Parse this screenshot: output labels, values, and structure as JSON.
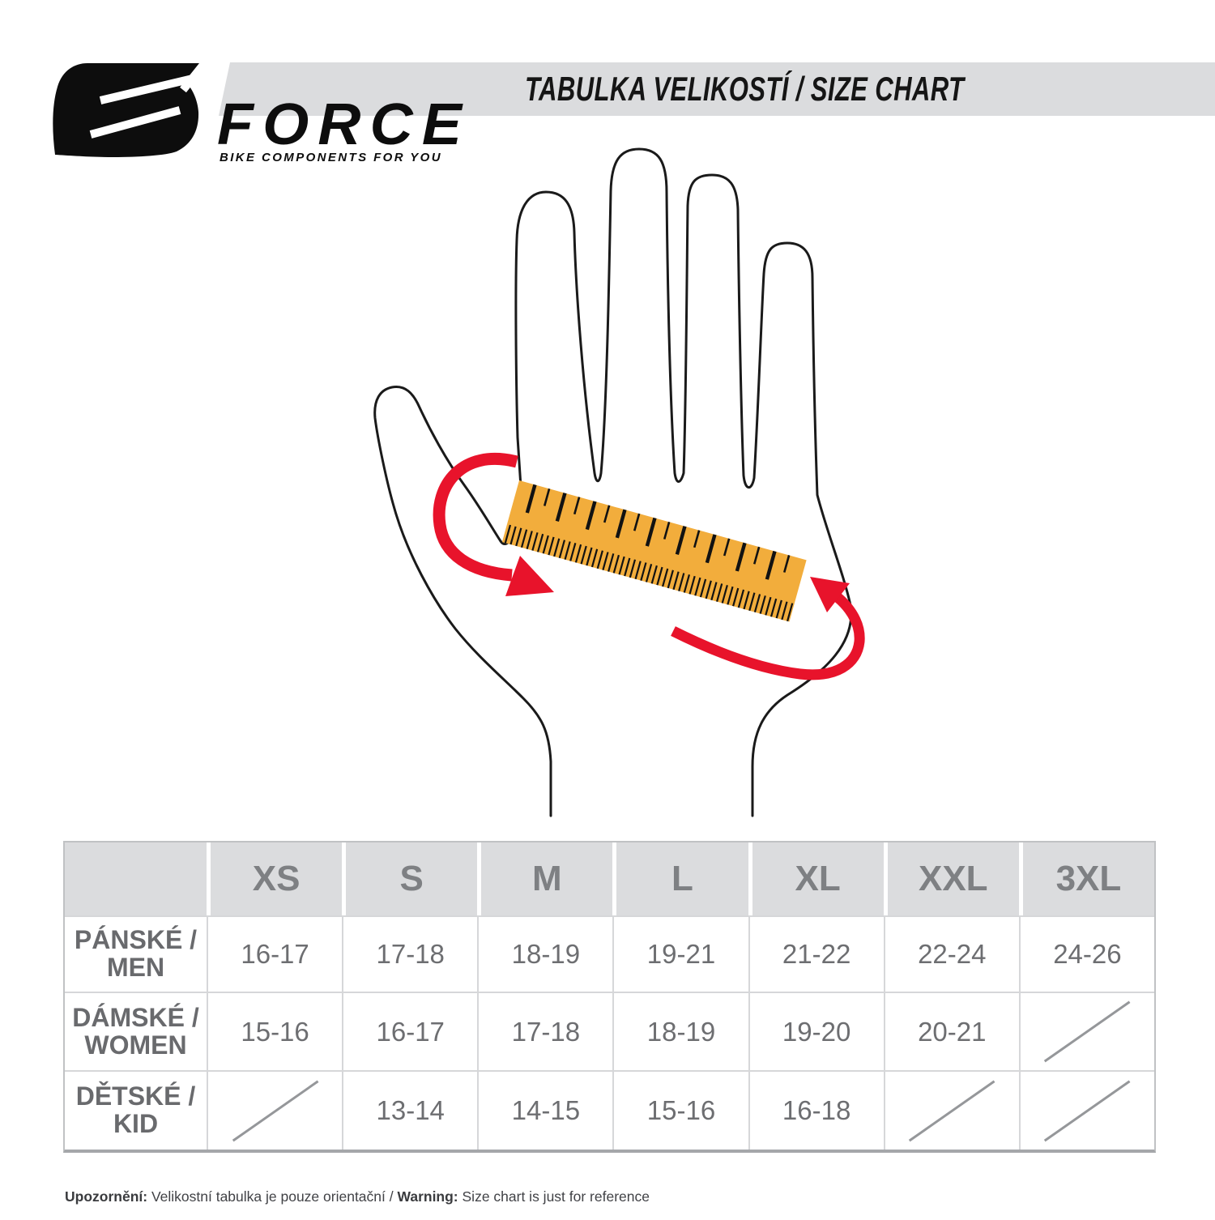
{
  "logo": {
    "brand": "FORCE",
    "tagline": "BIKE COMPONENTS FOR YOU"
  },
  "header": {
    "title": "TABULKA VELIKOSTÍ / SIZE CHART"
  },
  "illustration": {
    "tape_color": "#F2AD3C",
    "tick_color": "#121212",
    "arrow_color": "#E8132B",
    "outline_color": "#1A1A1A"
  },
  "size_table": {
    "columns": [
      "XS",
      "S",
      "M",
      "L",
      "XL",
      "XXL",
      "3XL"
    ],
    "rows": [
      {
        "label_line1": "PÁNSKÉ /",
        "label_line2": "MEN",
        "values": [
          "16-17",
          "17-18",
          "18-19",
          "19-21",
          "21-22",
          "22-24",
          "24-26"
        ]
      },
      {
        "label_line1": "DÁMSKÉ /",
        "label_line2": "WOMEN",
        "values": [
          "15-16",
          "16-17",
          "17-18",
          "18-19",
          "19-20",
          "20-21",
          ""
        ]
      },
      {
        "label_line1": "DĚTSKÉ /",
        "label_line2": "KID",
        "values": [
          "",
          "13-14",
          "14-15",
          "15-16",
          "16-18",
          "",
          ""
        ]
      }
    ]
  },
  "footer": {
    "note_bold_1": "Upozornění:",
    "note_text_1": " Velikostní tabulka je pouze orientační / ",
    "note_bold_2": "Warning:",
    "note_text_2": " Size chart is just for reference"
  },
  "chart_data": {
    "type": "table",
    "title": "TABULKA VELIKOSTÍ / SIZE CHART",
    "columns": [
      "",
      "XS",
      "S",
      "M",
      "L",
      "XL",
      "XXL",
      "3XL"
    ],
    "rows": [
      [
        "PÁNSKÉ / MEN",
        "16-17",
        "17-18",
        "18-19",
        "19-21",
        "21-22",
        "22-24",
        "24-26"
      ],
      [
        "DÁMSKÉ / WOMEN",
        "15-16",
        "16-17",
        "17-18",
        "18-19",
        "19-20",
        "20-21",
        ""
      ],
      [
        "DĚTSKÉ / KID",
        "",
        "13-14",
        "14-15",
        "15-16",
        "16-18",
        "",
        ""
      ]
    ]
  }
}
